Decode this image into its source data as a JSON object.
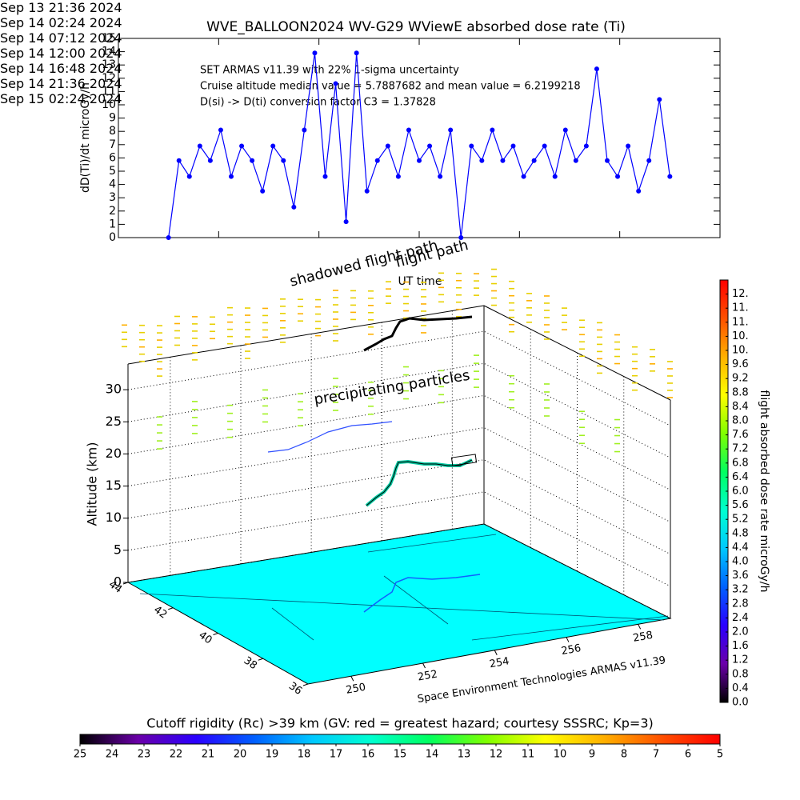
{
  "chart_data": [
    {
      "type": "line",
      "title": "WVE_BALLOON2024 WV-G29 WViewE absorbed dose rate (Ti)",
      "y_label": "dD(Ti)/dt microGy/h",
      "x_label": "UT time",
      "annotations": [
        "SET ARMAS v11.39 with 22% 1-sigma uncertainty",
        "Cruise altitude median value = 5.7887682 and mean value = 6.2199218",
        "D(si) -> D(ti) conversion factor C3 = 1.37828"
      ],
      "x": [
        "2024-09-14T00:00",
        "2024-09-14T00:30",
        "2024-09-14T01:00",
        "2024-09-14T01:30",
        "2024-09-14T02:00",
        "2024-09-14T02:30",
        "2024-09-14T03:00",
        "2024-09-14T03:30",
        "2024-09-14T04:00",
        "2024-09-14T04:30",
        "2024-09-14T05:00",
        "2024-09-14T05:30",
        "2024-09-14T06:00",
        "2024-09-14T06:30",
        "2024-09-14T07:00",
        "2024-09-14T07:30",
        "2024-09-14T08:00",
        "2024-09-14T08:30",
        "2024-09-14T09:00",
        "2024-09-14T09:30",
        "2024-09-14T10:00",
        "2024-09-14T10:30",
        "2024-09-14T11:00",
        "2024-09-14T11:30",
        "2024-09-14T12:00",
        "2024-09-14T12:30",
        "2024-09-14T13:00",
        "2024-09-14T13:30",
        "2024-09-14T14:00",
        "2024-09-14T14:30",
        "2024-09-14T15:00",
        "2024-09-14T15:30",
        "2024-09-14T16:00",
        "2024-09-14T16:30",
        "2024-09-14T17:00",
        "2024-09-14T17:30",
        "2024-09-14T18:00",
        "2024-09-14T18:30",
        "2024-09-14T19:00",
        "2024-09-14T19:30",
        "2024-09-14T20:00",
        "2024-09-14T20:30",
        "2024-09-14T21:00",
        "2024-09-14T21:30",
        "2024-09-14T22:00",
        "2024-09-14T22:30",
        "2024-09-14T23:00",
        "2024-09-14T23:30",
        "2024-09-15T00:00"
      ],
      "series": [
        {
          "color": "#0000ff",
          "values": [
            0,
            5.8,
            4.6,
            6.9,
            5.8,
            8.1,
            4.6,
            6.9,
            5.8,
            3.5,
            6.9,
            5.8,
            2.3,
            8.1,
            13.9,
            4.6,
            11.6,
            1.2,
            13.9,
            3.5,
            5.8,
            6.9,
            4.6,
            8.1,
            5.8,
            6.9,
            4.6,
            8.1,
            0,
            6.9,
            5.8,
            8.1,
            5.8,
            6.9,
            4.6,
            5.8,
            6.9,
            4.6,
            8.1,
            5.8,
            6.9,
            12.7,
            5.8,
            4.6,
            6.9,
            3.5,
            5.8,
            10.4,
            4.6
          ]
        }
      ],
      "xlim": [
        "2024-09-13T21:36",
        "2024-09-15T02:24"
      ],
      "xticks": [
        {
          "value": "2024-09-13T21:36",
          "label": "Sep 13\n21:36 2024"
        },
        {
          "value": "2024-09-14T02:24",
          "label": "Sep 14\n02:24 2024"
        },
        {
          "value": "2024-09-14T07:12",
          "label": "Sep 14\n07:12 2024"
        },
        {
          "value": "2024-09-14T12:00",
          "label": "Sep 14\n12:00 2024"
        },
        {
          "value": "2024-09-14T16:48",
          "label": "Sep 14\n16:48 2024"
        },
        {
          "value": "2024-09-14T21:36",
          "label": "Sep 14\n21:36 2024"
        },
        {
          "value": "2024-09-15T02:24",
          "label": "Sep 15\n02:24 2024"
        }
      ],
      "ylim": [
        0,
        15
      ],
      "yticks": [
        0,
        1,
        2,
        3,
        4,
        5,
        6,
        7,
        8,
        9,
        10,
        11,
        12,
        13,
        14,
        15
      ]
    },
    {
      "type": "scatter3d",
      "z_label": "Altitude (km)",
      "annotations": [
        "shadowed flight path",
        "flight path",
        "precipitating particles"
      ],
      "credit": "Space Environment Technologies ARMAS v11.39",
      "xlim": [
        248.8,
        258.9
      ],
      "xticks": [
        250,
        252,
        254,
        256,
        258
      ],
      "ylim": [
        44,
        36
      ],
      "yticks": [
        44,
        42,
        40,
        38,
        36
      ],
      "zlim": [
        0,
        34
      ],
      "zticks": [
        0,
        5,
        10,
        15,
        20,
        25,
        30
      ],
      "floor_color": "#00ffff"
    },
    {
      "type": "colorbar",
      "orientation": "vertical",
      "label": "flight absorbed dose rate microGy/h",
      "lim": [
        0,
        12
      ],
      "ticks": [
        {
          "value": 0,
          "label": "0.0"
        },
        0.4,
        0.8,
        1.2,
        1.6,
        {
          "value": 2,
          "label": "2.0"
        },
        2.4,
        2.8,
        3.2,
        3.6,
        {
          "value": 4,
          "label": "4.0"
        },
        4.4,
        4.8,
        5.2,
        5.6,
        {
          "value": 6,
          "label": "6.0"
        },
        6.4,
        6.8,
        7.2,
        7.6,
        {
          "value": 8,
          "label": "8.0"
        },
        8.4,
        8.8,
        9.2,
        9.6,
        {
          "value": 10,
          "label": "10."
        },
        {
          "value": 10.4,
          "label": "10."
        },
        {
          "value": 10.8,
          "label": "11."
        },
        {
          "value": 11.2,
          "label": "11."
        },
        {
          "value": 11.6,
          "label": "12."
        }
      ],
      "colormap": [
        "#000000",
        "#6a00a8",
        "#2a00ff",
        "#0060ff",
        "#00c8ff",
        "#00ffd0",
        "#00ff60",
        "#80ff00",
        "#ffff00",
        "#ffb000",
        "#ff5000",
        "#ff0000"
      ]
    },
    {
      "type": "colorbar",
      "orientation": "horizontal",
      "label": "Cutoff rigidity (Rc) >39 km (GV: red = greatest hazard; courtesy SSSRC; Kp=3)",
      "lim": [
        25,
        5
      ],
      "ticks": [
        25,
        24,
        23,
        22,
        21,
        20,
        19,
        18,
        17,
        16,
        15,
        14,
        13,
        12,
        11,
        10,
        9,
        8,
        7,
        6,
        5
      ],
      "colormap": [
        "#000000",
        "#6a00a8",
        "#2a00ff",
        "#0060ff",
        "#00c8ff",
        "#00ffd0",
        "#00ff60",
        "#80ff00",
        "#ffff00",
        "#ffb000",
        "#ff5000",
        "#ff0000"
      ]
    }
  ]
}
